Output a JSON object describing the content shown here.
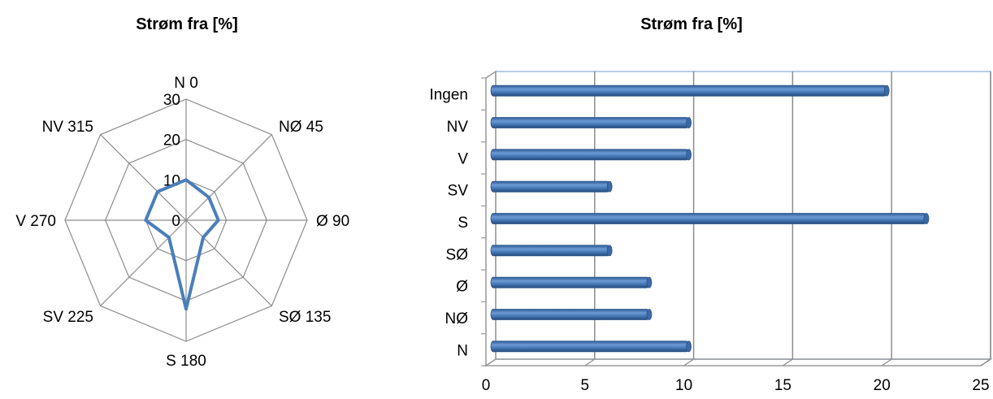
{
  "chart_data": [
    {
      "type": "radar",
      "title": "Strøm fra [%]",
      "categories": [
        "N 0",
        "NØ 45",
        "Ø 90",
        "SØ 135",
        "S 180",
        "SV 225",
        "V 270",
        "NV 315"
      ],
      "values": [
        10,
        8,
        8,
        6,
        22,
        6,
        10,
        10
      ],
      "rlim": [
        0,
        30
      ],
      "ticks": [
        0,
        10,
        20,
        30
      ],
      "series_color": "#4a7ebb",
      "grid_color": "#8c8c8c"
    },
    {
      "type": "bar",
      "orientation": "horizontal",
      "style": "3d-cylinder",
      "title": "Strøm fra [%]",
      "categories": [
        "N",
        "NØ",
        "Ø",
        "SØ",
        "S",
        "SV",
        "V",
        "NV",
        "Ingen"
      ],
      "values": [
        10,
        8,
        8,
        6,
        22,
        6,
        10,
        10,
        20
      ],
      "xlim": [
        0,
        25
      ],
      "xticks": [
        0,
        5,
        10,
        15,
        20,
        25
      ],
      "series_color": "#4a7ebb",
      "gridline_color": "#8c8c8c",
      "frame_color": "#9dbbe0"
    }
  ]
}
